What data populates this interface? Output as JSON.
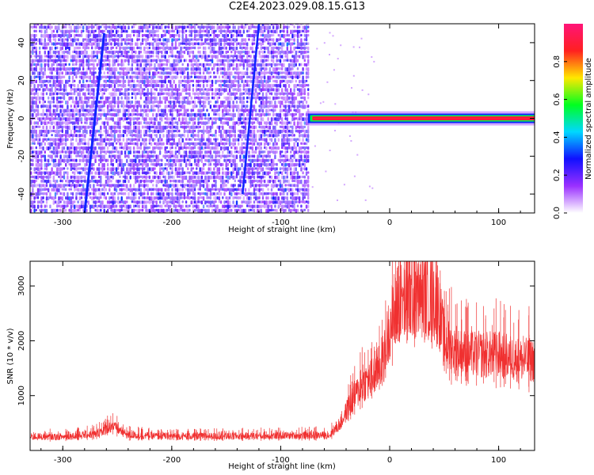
{
  "title": "C2E4.2023.029.08.15.G13",
  "chart_data": [
    {
      "type": "heatmap",
      "xlabel": "Height of straight line (km)",
      "ylabel": "Frequency (Hz)",
      "xlim": [
        -330,
        133
      ],
      "ylim": [
        -50,
        50
      ],
      "xticks": [
        -300,
        -200,
        -100,
        0,
        100
      ],
      "yticks": [
        -40,
        -20,
        0,
        20,
        40
      ],
      "colorbar": {
        "label": "Normalized spectral amplitude",
        "range": [
          0,
          1
        ],
        "ticks": [
          0.0,
          0.2,
          0.4,
          0.6,
          0.8
        ],
        "colors": [
          "#ffffff",
          "#9a30ff",
          "#1010ff",
          "#00d8ff",
          "#00ff20",
          "#ffe800",
          "#ff2020",
          "#ff1478"
        ]
      },
      "features": {
        "noise_region_x": [
          -330,
          -75
        ],
        "tone_band_x": [
          -75,
          133
        ],
        "tone_frequency": 0,
        "tone_amplitude": 0.9,
        "drifting_lines": [
          {
            "x": [
              -280,
              -262
            ],
            "y": [
              -50,
              45
            ]
          },
          {
            "x": [
              -135,
              -120
            ],
            "y": [
              -40,
              50
            ]
          }
        ]
      },
      "grid": false
    },
    {
      "type": "line",
      "xlabel": "Height of straight line (km)",
      "ylabel": "SNR (10 * v/v)",
      "xlim": [
        -330,
        133
      ],
      "ylim": [
        0,
        3450
      ],
      "xticks": [
        -300,
        -200,
        -100,
        0,
        100
      ],
      "yticks": [
        1000,
        2000,
        3000
      ],
      "color": "#f03030",
      "series": [
        {
          "x": [
            -330,
            -300,
            -270,
            -255,
            -240,
            -200,
            -150,
            -100,
            -55,
            -45,
            -35,
            -25,
            -15,
            -5,
            0,
            10,
            20,
            30,
            40,
            45,
            50,
            60,
            80,
            100,
            120,
            133
          ],
          "y": [
            250,
            250,
            300,
            450,
            280,
            260,
            260,
            270,
            280,
            500,
            900,
            1200,
            1350,
            1700,
            2300,
            2700,
            2800,
            2800,
            2750,
            2600,
            2000,
            1800,
            1750,
            1750,
            1650,
            1650
          ]
        }
      ],
      "grid": false
    }
  ]
}
